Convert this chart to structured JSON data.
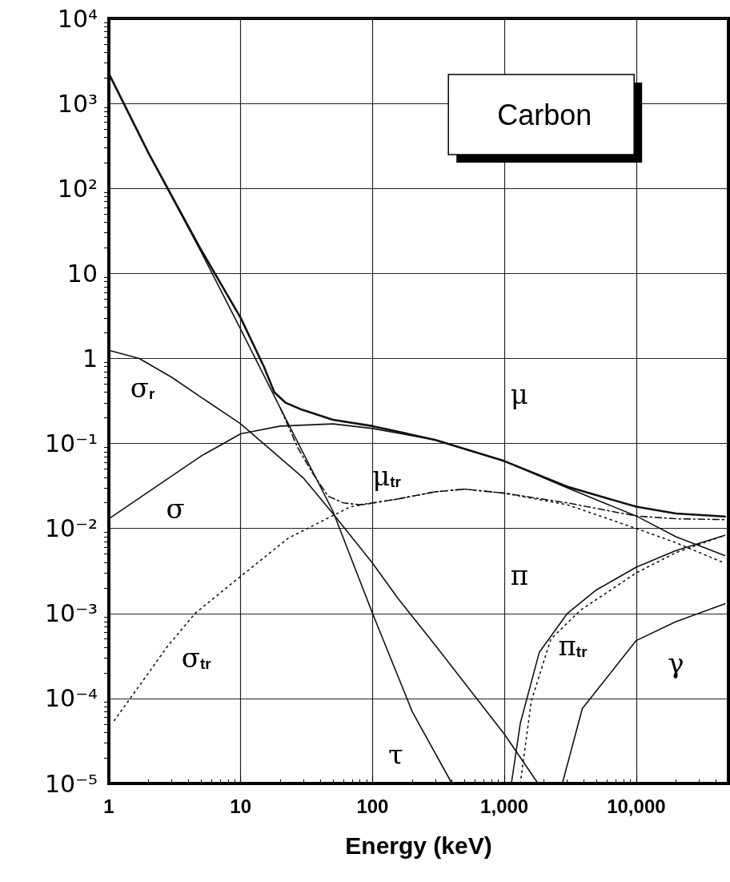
{
  "chart_data": {
    "type": "line",
    "xlabel": "Energy (keV)",
    "annotations": [
      "Carbon"
    ],
    "log": "xy",
    "grid": true,
    "legend": false,
    "marker": "none",
    "xlim": [
      1,
      50000
    ],
    "xticks": [
      1,
      10,
      100,
      {
        "value": 1000,
        "label": "1,000"
      },
      {
        "value": 10000,
        "label": "10,000"
      }
    ],
    "ylim": [
      1e-05,
      10000
    ],
    "yticks": [
      {
        "value": 1e-05,
        "label": "10⁻⁵"
      },
      {
        "value": 0.0001,
        "label": "10⁻⁴"
      },
      {
        "value": 0.001,
        "label": "10⁻³"
      },
      {
        "value": 0.01,
        "label": "10⁻²"
      },
      {
        "value": 0.1,
        "label": "10⁻¹"
      },
      1,
      10,
      {
        "value": 100,
        "label": "10²"
      },
      {
        "value": 1000,
        "label": "10³"
      },
      {
        "value": 10000,
        "label": "10⁴"
      }
    ],
    "series": [
      {
        "name": "μ",
        "color": "#111111",
        "line_style": "solid",
        "x": [
          1,
          2,
          5,
          10,
          15,
          18,
          22,
          29,
          50,
          100,
          300,
          1000,
          3000,
          10000,
          20000,
          47000
        ],
        "values": [
          2240,
          260,
          19,
          3,
          0.8,
          0.4,
          0.3,
          0.25,
          0.19,
          0.16,
          0.11,
          0.062,
          0.031,
          0.018,
          0.015,
          0.0138
        ]
      },
      {
        "name": "μ$_{tr}$",
        "color": "#111111",
        "line_style": "dashed",
        "x": [
          20,
          27,
          35,
          46,
          60,
          80,
          150,
          300,
          500,
          1000,
          3000,
          10000,
          20000,
          47000
        ],
        "values": [
          0.26,
          0.09,
          0.045,
          0.024,
          0.02,
          0.019,
          0.022,
          0.027,
          0.029,
          0.026,
          0.02,
          0.014,
          0.013,
          0.0127
        ]
      },
      {
        "name": "τ",
        "color": "#111111",
        "line_style": "solid",
        "x": [
          1,
          2,
          5,
          10,
          20,
          50,
          100,
          200,
          400
        ],
        "values": [
          2240,
          260,
          18,
          2.2,
          0.26,
          0.016,
          0.001,
          7e-05,
          1e-05
        ]
      },
      {
        "name": "σ$_{r}$",
        "color": "#111111",
        "line_style": "solid",
        "x": [
          1,
          1.7,
          3,
          5,
          10,
          30,
          50,
          100,
          156,
          300,
          1000,
          1800
        ],
        "values": [
          1.25,
          1,
          0.6,
          0.35,
          0.17,
          0.039,
          0.015,
          0.0039,
          0.0015,
          0.00042,
          3.8e-05,
          1e-05
        ]
      },
      {
        "name": "σ",
        "color": "#111111",
        "line_style": "solid",
        "x": [
          1,
          2,
          5,
          10,
          20,
          50,
          100,
          300,
          1000,
          3000,
          10000,
          20000,
          47000
        ],
        "values": [
          0.013,
          0.027,
          0.071,
          0.13,
          0.16,
          0.17,
          0.15,
          0.11,
          0.062,
          0.03,
          0.014,
          0.008,
          0.0048
        ]
      },
      {
        "name": "σ$_{tr}$",
        "color": "#111111",
        "line_style": "dotted",
        "x": [
          1.1,
          2,
          2.75,
          4.5,
          9,
          23,
          68,
          150,
          300,
          500,
          1000,
          3000,
          10000,
          20000,
          47000
        ],
        "values": [
          5.5e-05,
          0.0002,
          0.0004,
          0.001,
          0.0024,
          0.0077,
          0.018,
          0.022,
          0.027,
          0.029,
          0.026,
          0.019,
          0.01,
          0.0068,
          0.0039
        ]
      },
      {
        "name": "π",
        "color": "#111111",
        "line_style": "solid",
        "x": [
          1130,
          1320,
          1840,
          3000,
          5000,
          10000,
          20000,
          47000
        ],
        "values": [
          1e-05,
          5.1e-05,
          0.00035,
          0.001,
          0.0019,
          0.0035,
          0.0055,
          0.0083
        ]
      },
      {
        "name": "π$_{tr}$",
        "color": "#111111",
        "line_style": "dotted",
        "x": [
          1320,
          1600,
          2250,
          3800,
          10000,
          20000,
          47000
        ],
        "values": [
          1e-05,
          9.3e-05,
          0.0005,
          0.0011,
          0.003,
          0.0052,
          0.0083
        ]
      },
      {
        "name": "γ",
        "color": "#111111",
        "line_style": "solid",
        "x": [
          2750,
          3900,
          10000,
          20000,
          47000
        ],
        "values": [
          1e-05,
          7.6e-05,
          0.00048,
          0.0008,
          0.0013
        ]
      }
    ]
  }
}
